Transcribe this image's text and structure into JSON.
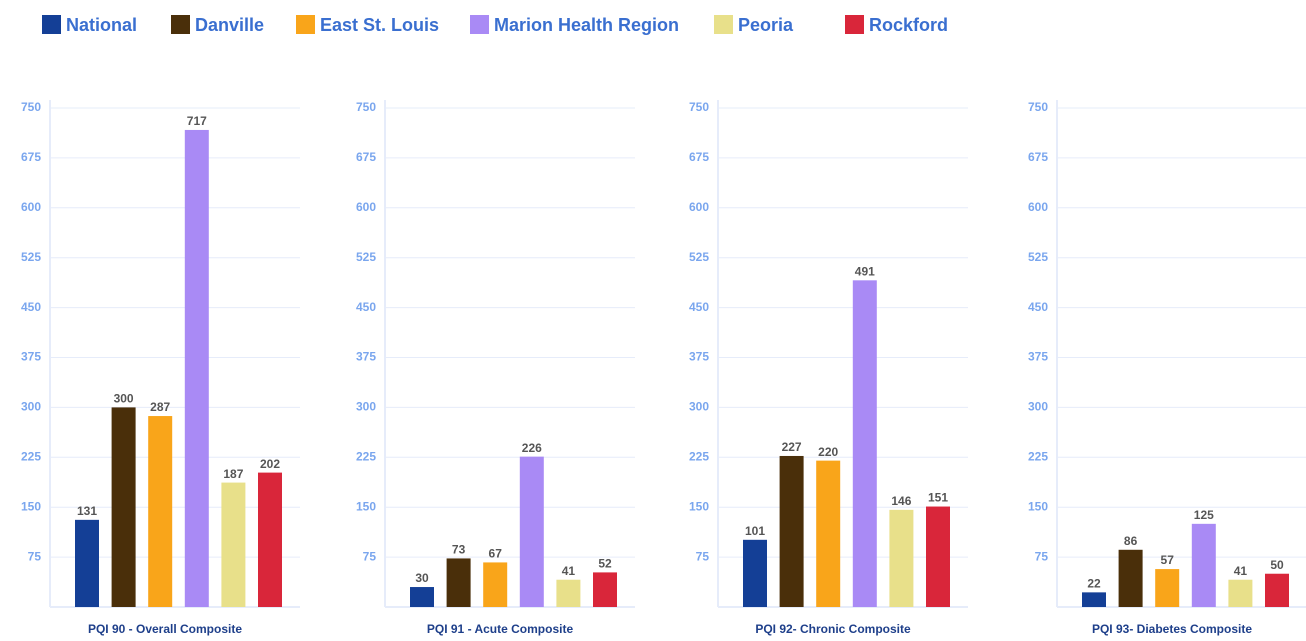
{
  "chart_data": {
    "type": "bar",
    "categories": [
      "PQI 90 - Overall Composite",
      "PQI 91 - Acute Composite",
      "PQI 92- Chronic Composite",
      "PQI 93- Diabetes Composite"
    ],
    "series": [
      {
        "name": "National",
        "color": "#143f96",
        "values": [
          131,
          30,
          101,
          22
        ]
      },
      {
        "name": "Danville",
        "color": "#4a2f0a",
        "values": [
          300,
          73,
          227,
          86
        ]
      },
      {
        "name": "East St. Louis",
        "color": "#f9a51a",
        "values": [
          287,
          67,
          220,
          57
        ]
      },
      {
        "name": "Marion Health Region",
        "color": "#a98af5",
        "values": [
          717,
          226,
          491,
          125
        ]
      },
      {
        "name": "Peoria",
        "color": "#e8e08a",
        "values": [
          187,
          41,
          146,
          41
        ]
      },
      {
        "name": "Rockford",
        "color": "#d9263a",
        "values": [
          202,
          52,
          151,
          50
        ]
      }
    ],
    "ylim": [
      0,
      750
    ],
    "yticks": [
      75,
      150,
      225,
      300,
      375,
      450,
      525,
      600,
      675,
      750
    ],
    "grid": true
  }
}
